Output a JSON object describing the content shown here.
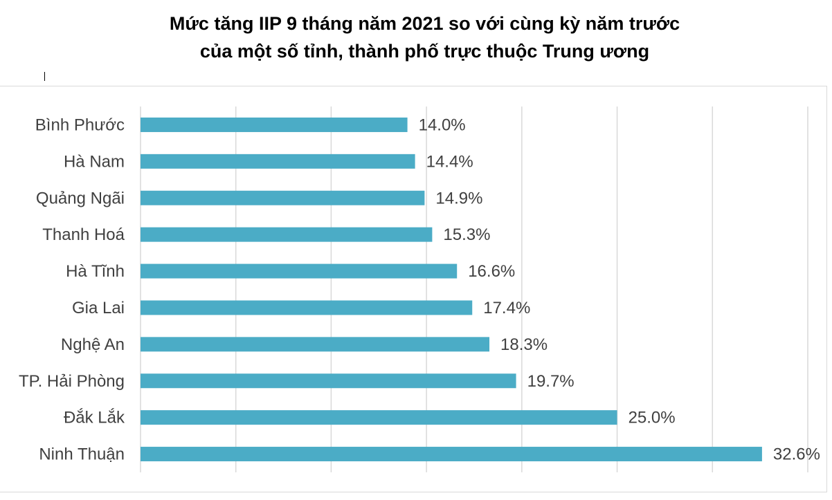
{
  "chart_data": {
    "type": "bar",
    "orientation": "horizontal",
    "title": [
      "Mức tăng IIP 9 tháng năm 2021 so với cùng kỳ năm trước",
      "của một số tỉnh, thành phố trực thuộc Trung ương"
    ],
    "categories": [
      "Bình Phước",
      "Hà Nam",
      "Quảng Ngãi",
      "Thanh Hoá",
      "Hà Tĩnh",
      "Gia Lai",
      "Nghệ An",
      "TP. Hải Phòng",
      "Đắk Lắk",
      "Ninh Thuận"
    ],
    "values": [
      14.0,
      14.4,
      14.9,
      15.3,
      16.6,
      17.4,
      18.3,
      19.7,
      25.0,
      32.6
    ],
    "value_labels": [
      "14.0%",
      "14.4%",
      "14.9%",
      "15.3%",
      "16.6%",
      "17.4%",
      "18.3%",
      "19.7%",
      "25.0%",
      "32.6%"
    ],
    "xlim": [
      0,
      35
    ],
    "gridlines": "vertical",
    "gridline_step": 5,
    "bar_color": "#4bacc6",
    "grid_color": "#d9d9d9",
    "legend": "none"
  }
}
